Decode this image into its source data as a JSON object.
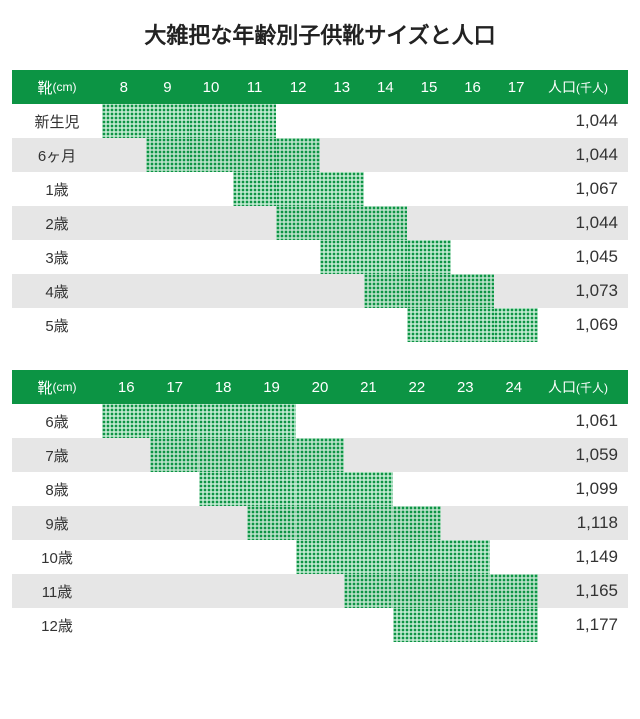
{
  "title": "大雑把な年齢別子供靴サイズと人口",
  "populationHeader": "人口",
  "populationUnit": "(千人)",
  "shoeHeader": "靴",
  "shoeUnit": "(cm)",
  "colors": {
    "header": "#0c9444",
    "fill": "#0c9444",
    "oddRow": "#e6e6e6",
    "evenRow": "#ffffff",
    "text": "#333333",
    "background": "#ffffff"
  },
  "tables": [
    {
      "columns": [
        "8",
        "9",
        "10",
        "11",
        "12",
        "13",
        "14",
        "15",
        "16",
        "17"
      ],
      "rows": [
        {
          "age": "新生児",
          "range": [
            8,
            11
          ],
          "population": "1,044"
        },
        {
          "age": "6ヶ月",
          "range": [
            9,
            12
          ],
          "population": "1,044"
        },
        {
          "age": "1歳",
          "range": [
            11,
            13
          ],
          "population": "1,067"
        },
        {
          "age": "2歳",
          "range": [
            12,
            14
          ],
          "population": "1,044"
        },
        {
          "age": "3歳",
          "range": [
            13,
            15
          ],
          "population": "1,045"
        },
        {
          "age": "4歳",
          "range": [
            14,
            16
          ],
          "population": "1,073"
        },
        {
          "age": "5歳",
          "range": [
            15,
            17
          ],
          "population": "1,069"
        }
      ]
    },
    {
      "columns": [
        "16",
        "17",
        "18",
        "19",
        "20",
        "21",
        "22",
        "23",
        "24"
      ],
      "rows": [
        {
          "age": "6歳",
          "range": [
            16,
            19
          ],
          "population": "1,061"
        },
        {
          "age": "7歳",
          "range": [
            17,
            20
          ],
          "population": "1,059"
        },
        {
          "age": "8歳",
          "range": [
            18,
            21
          ],
          "population": "1,099"
        },
        {
          "age": "9歳",
          "range": [
            19,
            22
          ],
          "population": "1,118"
        },
        {
          "age": "10歳",
          "range": [
            20,
            23
          ],
          "population": "1,149"
        },
        {
          "age": "11歳",
          "range": [
            21,
            24
          ],
          "population": "1,165"
        },
        {
          "age": "12歳",
          "range": [
            22,
            24
          ],
          "population": "1,177"
        }
      ]
    }
  ]
}
